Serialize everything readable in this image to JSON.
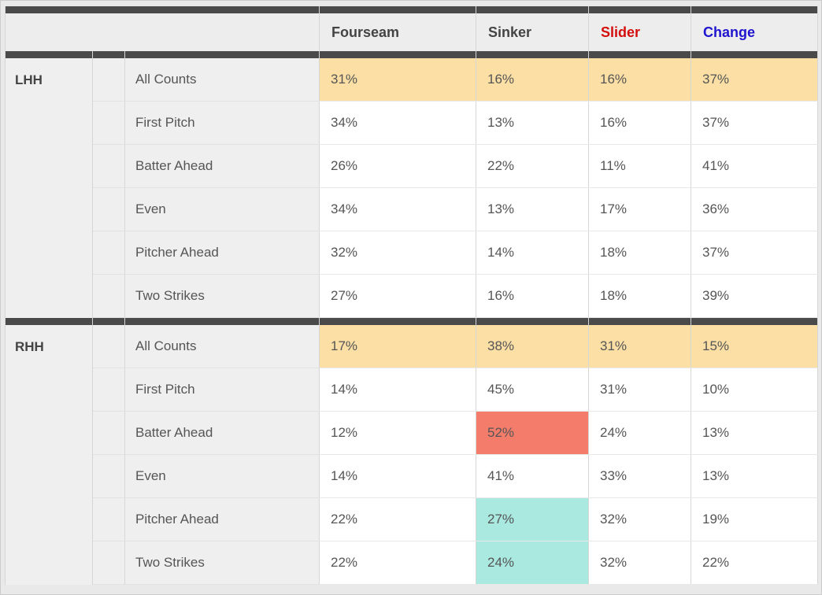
{
  "page": {
    "background": "#e9e9e9",
    "frame_border": "#cccccc"
  },
  "table": {
    "columns": [
      "Fourseam",
      "Sinker",
      "Slider",
      "Change"
    ],
    "header_colors": [
      "#444444",
      "#444444",
      "#d40d0d",
      "#2015cf"
    ],
    "bar_color": "#4a4a4a",
    "header_bg": "#ededed",
    "label_bg": "#efefef",
    "highlight_colors": {
      "orange": "#fbdfa5",
      "red": "#f47c6b",
      "cyan": "#a9e9e0"
    },
    "row_highlights": {
      "LHH": {
        "All Counts": [
          "orange",
          "orange",
          "orange",
          "orange"
        ]
      },
      "RHH": {
        "All Counts": [
          "orange",
          "orange",
          "orange",
          "orange"
        ],
        "Batter Ahead": [
          null,
          "red",
          null,
          null
        ],
        "Pitcher Ahead": [
          null,
          "cyan",
          null,
          null
        ],
        "Two Strikes": [
          null,
          "cyan",
          null,
          null
        ]
      }
    }
  },
  "chart_data": {
    "type": "table",
    "units": "%",
    "columns": [
      "Fourseam",
      "Sinker",
      "Slider",
      "Change"
    ],
    "sections": [
      {
        "group": "LHH",
        "rows": [
          {
            "label": "All Counts",
            "values": [
              31,
              16,
              16,
              37
            ]
          },
          {
            "label": "First Pitch",
            "values": [
              34,
              13,
              16,
              37
            ]
          },
          {
            "label": "Batter Ahead",
            "values": [
              26,
              22,
              11,
              41
            ]
          },
          {
            "label": "Even",
            "values": [
              34,
              13,
              17,
              36
            ]
          },
          {
            "label": "Pitcher Ahead",
            "values": [
              32,
              14,
              18,
              37
            ]
          },
          {
            "label": "Two Strikes",
            "values": [
              27,
              16,
              18,
              39
            ]
          }
        ]
      },
      {
        "group": "RHH",
        "rows": [
          {
            "label": "All Counts",
            "values": [
              17,
              38,
              31,
              15
            ]
          },
          {
            "label": "First Pitch",
            "values": [
              14,
              45,
              31,
              10
            ]
          },
          {
            "label": "Batter Ahead",
            "values": [
              12,
              52,
              24,
              13
            ]
          },
          {
            "label": "Even",
            "values": [
              14,
              41,
              33,
              13
            ]
          },
          {
            "label": "Pitcher Ahead",
            "values": [
              22,
              27,
              32,
              19
            ]
          },
          {
            "label": "Two Strikes",
            "values": [
              22,
              24,
              32,
              22
            ]
          }
        ]
      }
    ]
  }
}
